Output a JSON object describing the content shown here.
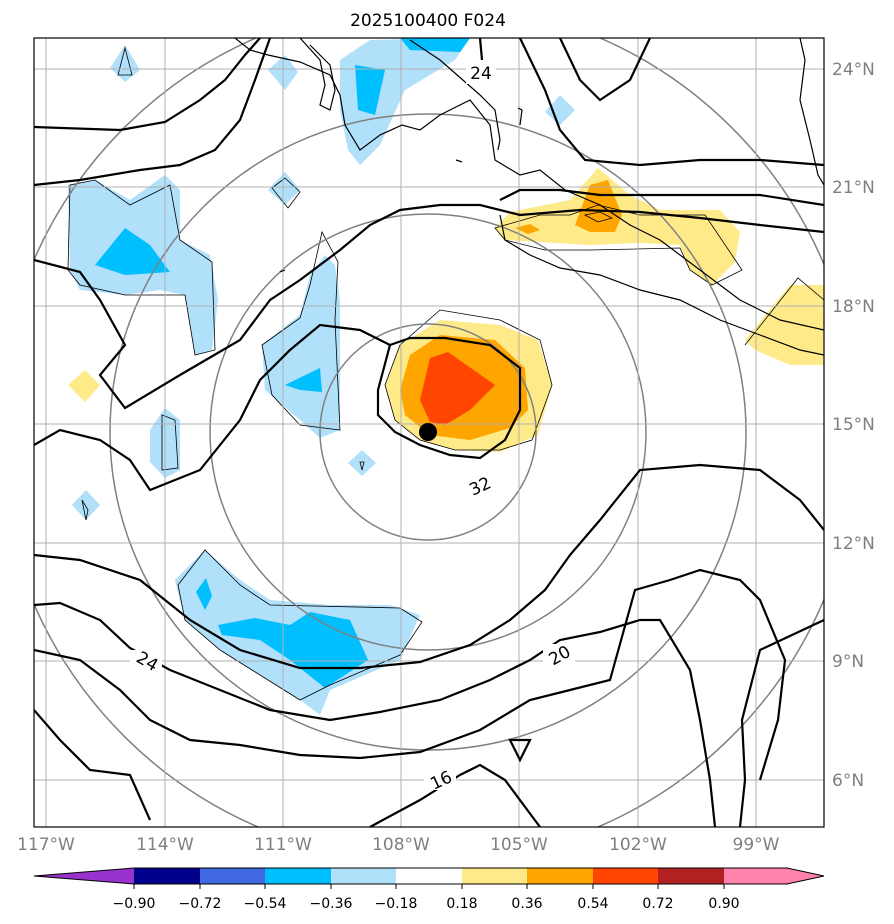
{
  "title": "2025100400 F024",
  "colors": {
    "pos1": "#ffea8a",
    "pos2": "#ffa500",
    "pos3": "#ff4500",
    "pos4": "#b22222",
    "pos5": "#ff82ab",
    "neg1": "#b0e0fa",
    "neg2": "#00bfff",
    "neg3": "#4169e1",
    "neg4": "#00008b",
    "neg5": "#9932cc",
    "grid": "#b0b0b0",
    "contour": "#000000",
    "rings": "#808080"
  },
  "chart_data": {
    "type": "map",
    "title": "2025100400 F024",
    "lon_range": [
      -117.5,
      -97.5
    ],
    "lat_range": [
      5,
      25
    ],
    "xticks": [
      "117°W",
      "114°W",
      "111°W",
      "108°W",
      "105°W",
      "102°W",
      "99°W"
    ],
    "yticks": [
      "24°N",
      "21°N",
      "18°N",
      "15°N",
      "12°N",
      "9°N",
      "6°N"
    ],
    "center": {
      "lon": -107.2,
      "lat": 14.8
    },
    "contour_labels": [
      {
        "text": "24",
        "lon": -105.6,
        "lat": 23.9
      },
      {
        "text": "32",
        "lon": -106.3,
        "lat": 13.9
      },
      {
        "text": "24",
        "lon": -113.6,
        "lat": 8.9
      },
      {
        "text": "20",
        "lon": -104.8,
        "lat": 9.1
      },
      {
        "text": "16",
        "lon": -107.2,
        "lat": 5.9
      }
    ],
    "colorbar": {
      "levels": [
        "−0.90",
        "−0.72",
        "−0.54",
        "−0.36",
        "−0.18",
        "0.18",
        "0.36",
        "0.54",
        "0.72",
        "0.90"
      ],
      "extend": "both"
    }
  }
}
